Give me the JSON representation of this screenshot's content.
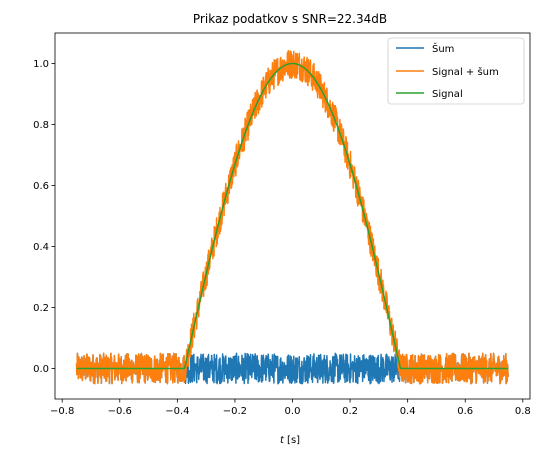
{
  "chart_data": {
    "type": "line",
    "title": "Prikaz podatkov s SNR=22.34dB",
    "xlabel_italic": "t",
    "xlabel_unit": " [s]",
    "xlim": [
      -0.825,
      0.825
    ],
    "ylim": [
      -0.1,
      1.1
    ],
    "x_ticks": [
      -0.8,
      -0.6,
      -0.4,
      -0.2,
      0.0,
      0.2,
      0.4,
      0.6,
      0.8
    ],
    "x_tick_labels": [
      "−0.8",
      "−0.6",
      "−0.4",
      "−0.2",
      "0.0",
      "0.2",
      "0.4",
      "0.6",
      "0.8"
    ],
    "y_ticks": [
      0.0,
      0.2,
      0.4,
      0.6,
      0.8,
      1.0
    ],
    "y_tick_labels": [
      "0.0",
      "0.2",
      "0.4",
      "0.6",
      "0.8",
      "1.0"
    ],
    "legend_position": "top-right",
    "series": [
      {
        "name": "Šum",
        "color": "#1f77b4",
        "description": "noise, amplitude ~±0.05",
        "x_range": [
          -0.75,
          0.75
        ],
        "noise_amplitude": 0.05
      },
      {
        "name": "Signal + šum",
        "color": "#ff7f0e",
        "x_range": [
          -0.75,
          0.75
        ],
        "noise_amplitude": 0.05
      },
      {
        "name": "Signal",
        "color": "#2ca02c",
        "x_range": [
          -0.75,
          0.75
        ],
        "support": [
          -0.375,
          0.375
        ],
        "peak": 1.0,
        "shape": "cosine"
      }
    ]
  }
}
